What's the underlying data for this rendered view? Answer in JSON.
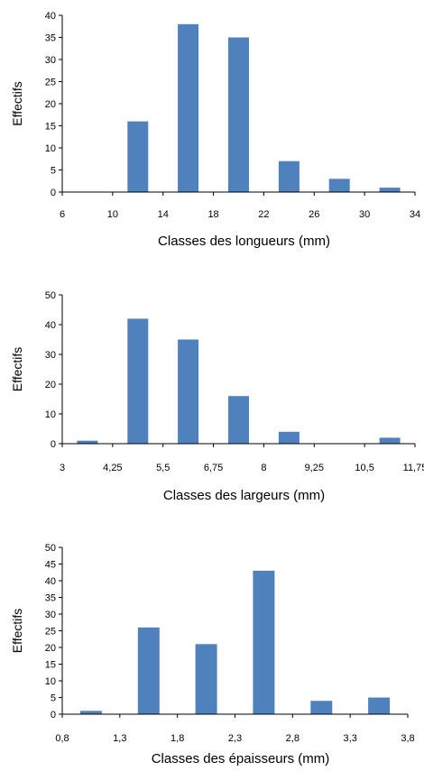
{
  "color": "#4F81BD",
  "chart_data": [
    {
      "type": "bar",
      "title": "",
      "xlabel": "Classes des longueurs (mm)",
      "ylabel": "Effectifs",
      "xlim": [
        6,
        34
      ],
      "ylim": [
        0,
        40
      ],
      "xticks": [
        6,
        10,
        14,
        18,
        22,
        26,
        30,
        34
      ],
      "xtick_labels": [
        "6",
        "10",
        "14",
        "18",
        "22",
        "26",
        "30",
        "34"
      ],
      "yticks": [
        0,
        5,
        10,
        15,
        20,
        25,
        30,
        35,
        40
      ],
      "ytick_labels": [
        "0",
        "5",
        "10",
        "15",
        "20",
        "25",
        "30",
        "35",
        "40"
      ],
      "x": [
        8,
        12,
        16,
        20,
        24,
        28,
        32
      ],
      "values": [
        0,
        16,
        38,
        35,
        7,
        3,
        1
      ]
    },
    {
      "type": "bar",
      "title": "",
      "xlabel": "Classes des largeurs (mm)",
      "ylabel": "Effectifs",
      "xlim": [
        3,
        11.75
      ],
      "ylim": [
        0,
        50
      ],
      "xticks": [
        3,
        4.25,
        5.5,
        6.75,
        8,
        9.25,
        10.5,
        11.75
      ],
      "xtick_labels": [
        "3",
        "4,25",
        "5,5",
        "6,75",
        "8",
        "9,25",
        "10,5",
        "11,75"
      ],
      "yticks": [
        0,
        10,
        20,
        30,
        40,
        50
      ],
      "ytick_labels": [
        "0",
        "10",
        "20",
        "30",
        "40",
        "50"
      ],
      "x": [
        3.625,
        4.875,
        6.125,
        7.375,
        8.625,
        9.875,
        11.125
      ],
      "values": [
        1,
        42,
        35,
        16,
        4,
        0,
        2
      ]
    },
    {
      "type": "bar",
      "title": "",
      "xlabel": "Classes des épaisseurs (mm)",
      "ylabel": "Effectifs",
      "xlim": [
        0.8,
        3.8
      ],
      "ylim": [
        0,
        50
      ],
      "xticks": [
        0.8,
        1.3,
        1.8,
        2.3,
        2.8,
        3.3,
        3.8
      ],
      "xtick_labels": [
        "0,8",
        "1,3",
        "1,8",
        "2,3",
        "2,8",
        "3,3",
        "3,8"
      ],
      "yticks": [
        0,
        5,
        10,
        15,
        20,
        25,
        30,
        35,
        40,
        45,
        50
      ],
      "ytick_labels": [
        "0",
        "5",
        "10",
        "15",
        "20",
        "25",
        "30",
        "35",
        "40",
        "45",
        "50"
      ],
      "x": [
        1.05,
        1.55,
        2.05,
        2.55,
        3.05,
        3.55
      ],
      "values": [
        1,
        26,
        21,
        43,
        4,
        5
      ]
    }
  ]
}
